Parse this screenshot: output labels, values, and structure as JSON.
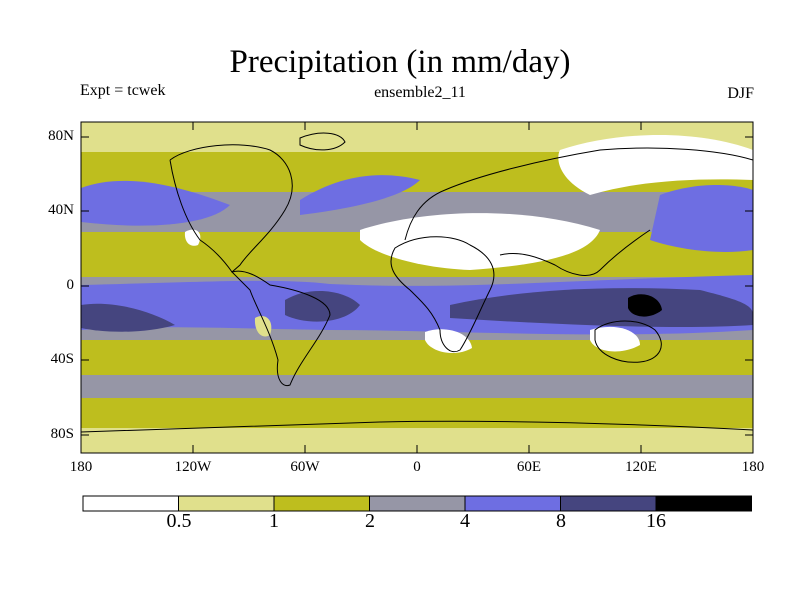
{
  "map": {
    "title": "Precipitation (in mm/day)",
    "experiment": "Expt = tcwek",
    "subtitle": "ensemble2_11",
    "season": "DJF",
    "y_ticks": [
      "80N",
      "40N",
      "0",
      "40S",
      "80S"
    ],
    "x_ticks": [
      "180",
      "120W",
      "60W",
      "0",
      "60E",
      "120E",
      "180"
    ]
  },
  "colorbar": {
    "labels": [
      "0.5",
      "1",
      "2",
      "4",
      "8",
      "16"
    ],
    "colors": [
      "#ffffff",
      "#e0e08c",
      "#bebe1e",
      "#9696a6",
      "#6e6ee2",
      "#45457f",
      "#000000"
    ]
  }
}
